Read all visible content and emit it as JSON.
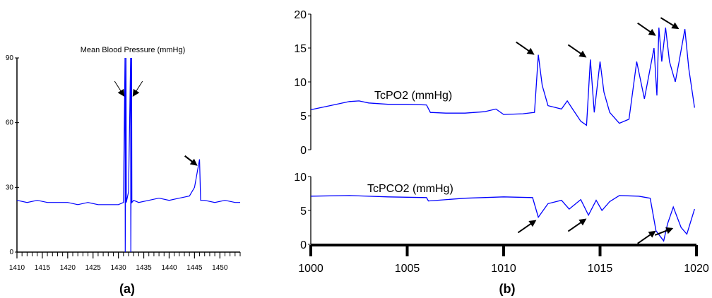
{
  "chart_data": [
    {
      "type": "line",
      "panel_label": "(a)",
      "title": "Mean Blood Pressure (mmHg)",
      "xlabel": "",
      "ylabel": "",
      "xlim": [
        1410,
        1454
      ],
      "ylim": [
        0,
        90
      ],
      "x_ticks": [
        1410,
        1415,
        1420,
        1425,
        1430,
        1435,
        1440,
        1445,
        1450
      ],
      "y_ticks": [
        0,
        30,
        60,
        90
      ],
      "grid": false,
      "series": [
        {
          "color": "#0000ff",
          "x": [
            1410,
            1412,
            1414,
            1416,
            1418,
            1420,
            1422,
            1424,
            1426,
            1428,
            1430,
            1431,
            1431.3,
            1431.35,
            1431.5,
            1431.55,
            1432,
            1432.4,
            1432.45,
            1432.6,
            1432.65,
            1433,
            1434,
            1436,
            1438,
            1440,
            1442,
            1444,
            1445,
            1446,
            1446.2,
            1447,
            1449,
            1451,
            1453,
            1454
          ],
          "y": [
            24,
            23,
            24,
            23,
            23,
            23,
            22,
            23,
            22,
            22,
            22,
            23,
            90,
            0,
            90,
            23,
            28,
            90,
            0,
            90,
            23,
            24,
            23,
            24,
            25,
            24,
            25,
            26,
            30,
            43,
            24,
            24,
            23,
            24,
            23,
            23
          ]
        }
      ],
      "annotations": [
        "arrow at 1431.4",
        "arrow at 1432.5",
        "arrow at 1445.7"
      ]
    },
    {
      "type": "line",
      "panel_label": "(b)",
      "xlim": [
        1000,
        1020
      ],
      "x_ticks": [
        1000,
        1005,
        1010,
        1015,
        1020
      ],
      "grid": false,
      "series": [
        {
          "name": "TcPO2 (mmHg)",
          "color": "#0000ff",
          "ylim": [
            0,
            20
          ],
          "y_ticks": [
            0,
            5,
            10,
            15,
            20
          ],
          "x": [
            1000,
            1001,
            1002,
            1002.5,
            1003,
            1004,
            1005,
            1006,
            1006.2,
            1007,
            1008,
            1009,
            1009.6,
            1010,
            1011,
            1011.6,
            1011.8,
            1012,
            1012.3,
            1013,
            1013.3,
            1013.6,
            1014,
            1014.3,
            1014.5,
            1014.7,
            1015,
            1015.2,
            1015.5,
            1016,
            1016.5,
            1016.9,
            1017.3,
            1017.8,
            1017.95,
            1018.05,
            1018.2,
            1018.4,
            1018.6,
            1018.9,
            1019.1,
            1019.4,
            1019.6,
            1019.9
          ],
          "y": [
            5.9,
            6.5,
            7.1,
            7.2,
            6.9,
            6.7,
            6.7,
            6.6,
            5.5,
            5.4,
            5.4,
            5.6,
            6,
            5.2,
            5.3,
            5.5,
            14,
            9.5,
            6.5,
            6,
            7.2,
            5.9,
            4.2,
            3.6,
            13.3,
            5.5,
            13,
            8.5,
            5.5,
            3.9,
            4.5,
            13,
            7.5,
            15,
            8,
            18,
            13,
            18,
            13,
            10,
            13,
            17.8,
            12,
            6.2
          ]
        },
        {
          "name": "TcPCO2 (mmHg)",
          "color": "#0000ff",
          "ylim": [
            0,
            10
          ],
          "y_ticks": [
            0,
            5,
            10
          ],
          "x": [
            1000,
            1002,
            1004,
            1006,
            1006.1,
            1008,
            1010,
            1011.5,
            1011.8,
            1012.3,
            1013,
            1013.4,
            1014,
            1014.4,
            1014.8,
            1015.1,
            1015.5,
            1016,
            1017,
            1017.6,
            1017.9,
            1018.3,
            1018.5,
            1018.8,
            1019.2,
            1019.5,
            1019.9
          ],
          "y": [
            7.1,
            7.2,
            7,
            6.9,
            6.4,
            6.8,
            7,
            6.9,
            4,
            6,
            6.5,
            5.2,
            6.6,
            4.3,
            6.5,
            5,
            6.3,
            7.2,
            7.1,
            6.8,
            2,
            0.5,
            3,
            5.5,
            2.5,
            1.5,
            5.2
          ]
        }
      ],
      "annotations": [
        "arrows at 1011.8, 1014.5, 1018.0, 1018.6 (top)",
        "arrows at 1011.8, 1014.4, 1018.3, 1018.9 (bottom)"
      ]
    }
  ]
}
